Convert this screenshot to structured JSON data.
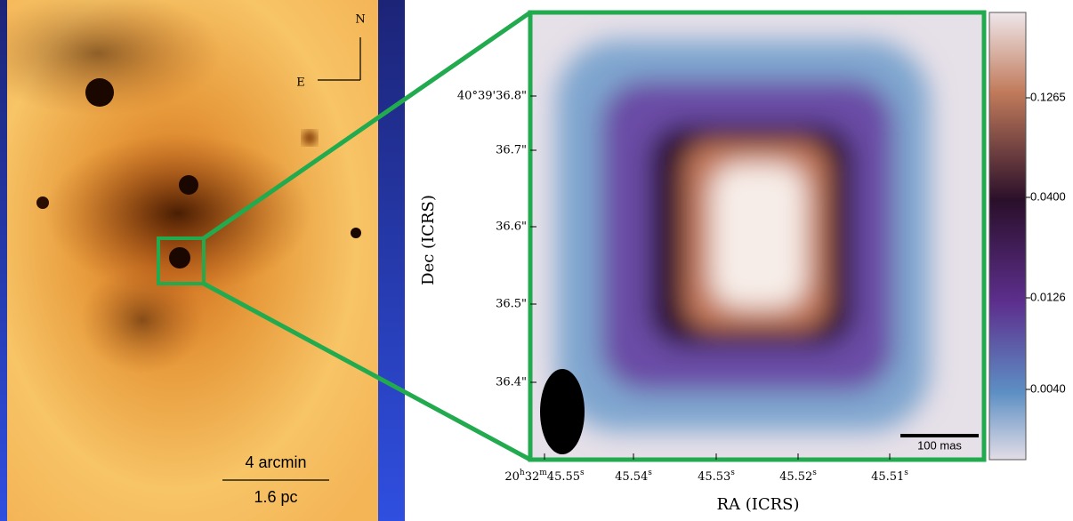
{
  "left_panel": {
    "compass": {
      "north": "N",
      "east": "E"
    },
    "scale_bar": {
      "angular": "4 arcmin",
      "physical": "1.6 pc"
    }
  },
  "right_panel": {
    "y_axis_label": "Dec (ICRS)",
    "x_axis_label": "RA (ICRS)",
    "y_tick_labels": [
      "40°39'36.8\"",
      "36.7\"",
      "36.6\"",
      "36.5\"",
      "36.4\""
    ],
    "x_tick_labels": [
      "20h32m45.55s",
      "45.54s",
      "45.53s",
      "45.52s",
      "45.51s"
    ],
    "colorbar_tick_labels": [
      "0.1265",
      "0.0400",
      "0.0126",
      "0.0040"
    ],
    "scale_bar": "100 mas"
  }
}
